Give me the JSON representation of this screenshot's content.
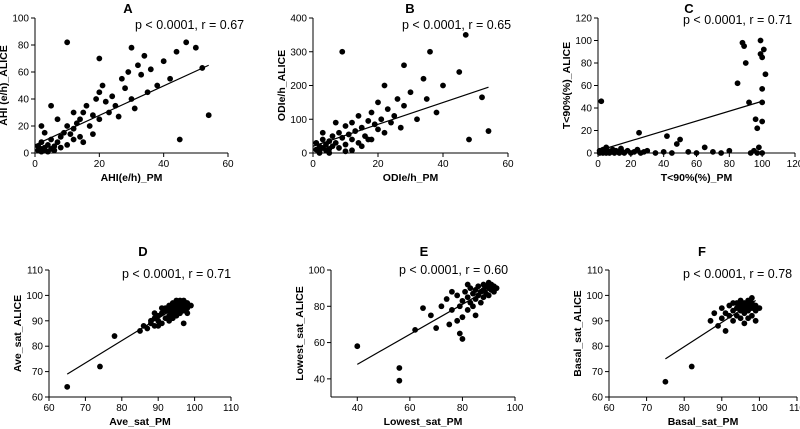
{
  "chart_data": [
    {
      "type": "scatter",
      "letter": "A",
      "stat": "p < 0.0001, r = 0.67",
      "xlabel": "AHI(e/h)_PM",
      "ylabel": "AHI (e/h)_ALICE",
      "xlim": [
        0,
        60
      ],
      "ylim": [
        0,
        100
      ],
      "xticks": [
        0,
        20,
        40,
        60
      ],
      "yticks": [
        0,
        20,
        40,
        60,
        80,
        100
      ],
      "fit": [
        [
          0,
          6
        ],
        [
          54,
          65
        ]
      ],
      "points": [
        [
          1,
          2
        ],
        [
          1,
          5
        ],
        [
          2,
          1
        ],
        [
          2,
          3
        ],
        [
          2,
          8
        ],
        [
          3,
          4
        ],
        [
          3,
          2
        ],
        [
          4,
          6
        ],
        [
          4,
          1
        ],
        [
          5,
          3
        ],
        [
          5,
          10
        ],
        [
          6,
          5
        ],
        [
          6,
          2
        ],
        [
          7,
          8
        ],
        [
          8,
          12
        ],
        [
          8,
          4
        ],
        [
          9,
          15
        ],
        [
          10,
          20
        ],
        [
          10,
          6
        ],
        [
          11,
          14
        ],
        [
          12,
          18
        ],
        [
          12,
          10
        ],
        [
          13,
          22
        ],
        [
          14,
          25
        ],
        [
          14,
          12
        ],
        [
          15,
          30
        ],
        [
          15,
          8
        ],
        [
          16,
          35
        ],
        [
          17,
          20
        ],
        [
          18,
          28
        ],
        [
          18,
          14
        ],
        [
          19,
          40
        ],
        [
          20,
          45
        ],
        [
          20,
          25
        ],
        [
          21,
          50
        ],
        [
          22,
          38
        ],
        [
          23,
          30
        ],
        [
          24,
          42
        ],
        [
          25,
          35
        ],
        [
          26,
          27
        ],
        [
          27,
          55
        ],
        [
          28,
          48
        ],
        [
          29,
          60
        ],
        [
          30,
          40
        ],
        [
          31,
          33
        ],
        [
          32,
          65
        ],
        [
          33,
          58
        ],
        [
          34,
          72
        ],
        [
          35,
          45
        ],
        [
          36,
          62
        ],
        [
          38,
          50
        ],
        [
          40,
          68
        ],
        [
          42,
          55
        ],
        [
          44,
          75
        ],
        [
          45,
          10
        ],
        [
          47,
          82
        ],
        [
          50,
          78
        ],
        [
          52,
          63
        ],
        [
          54,
          28
        ],
        [
          5,
          35
        ],
        [
          2,
          20
        ],
        [
          3,
          15
        ],
        [
          10,
          82
        ],
        [
          20,
          70
        ],
        [
          30,
          78
        ],
        [
          7,
          25
        ],
        [
          12,
          30
        ]
      ]
    },
    {
      "type": "scatter",
      "letter": "B",
      "stat": "p < 0.0001, r = 0.65",
      "xlabel": "ODIe/h_PM",
      "ylabel": "ODIe/h_ALICE",
      "xlim": [
        0,
        60
      ],
      "ylim": [
        0,
        400
      ],
      "xticks": [
        0,
        20,
        40,
        60
      ],
      "yticks": [
        0,
        100,
        200,
        300,
        400
      ],
      "fit": [
        [
          0,
          20
        ],
        [
          54,
          195
        ]
      ],
      "points": [
        [
          1,
          10
        ],
        [
          1,
          30
        ],
        [
          2,
          5
        ],
        [
          2,
          20
        ],
        [
          3,
          40
        ],
        [
          3,
          15
        ],
        [
          4,
          25
        ],
        [
          4,
          8
        ],
        [
          5,
          35
        ],
        [
          5,
          12
        ],
        [
          6,
          50
        ],
        [
          6,
          20
        ],
        [
          7,
          30
        ],
        [
          8,
          60
        ],
        [
          8,
          15
        ],
        [
          9,
          45
        ],
        [
          10,
          80
        ],
        [
          10,
          25
        ],
        [
          11,
          55
        ],
        [
          12,
          40
        ],
        [
          12,
          90
        ],
        [
          13,
          65
        ],
        [
          14,
          30
        ],
        [
          14,
          110
        ],
        [
          15,
          75
        ],
        [
          16,
          50
        ],
        [
          17,
          95
        ],
        [
          18,
          120
        ],
        [
          18,
          40
        ],
        [
          19,
          85
        ],
        [
          20,
          70
        ],
        [
          20,
          150
        ],
        [
          21,
          100
        ],
        [
          22,
          60
        ],
        [
          23,
          130
        ],
        [
          24,
          90
        ],
        [
          25,
          110
        ],
        [
          26,
          160
        ],
        [
          27,
          75
        ],
        [
          28,
          140
        ],
        [
          30,
          180
        ],
        [
          32,
          100
        ],
        [
          34,
          220
        ],
        [
          35,
          160
        ],
        [
          36,
          300
        ],
        [
          38,
          120
        ],
        [
          40,
          200
        ],
        [
          45,
          240
        ],
        [
          47,
          350
        ],
        [
          48,
          40
        ],
        [
          52,
          165
        ],
        [
          54,
          65
        ],
        [
          9,
          300
        ],
        [
          22,
          200
        ],
        [
          28,
          260
        ],
        [
          3,
          60
        ],
        [
          7,
          90
        ],
        [
          15,
          20
        ],
        [
          17,
          40
        ],
        [
          2,
          0
        ],
        [
          5,
          0
        ],
        [
          10,
          5
        ],
        [
          12,
          8
        ]
      ]
    },
    {
      "type": "scatter",
      "letter": "C",
      "stat": "p < 0.0001, r = 0.71",
      "xlabel": "T<90%(%)_PM",
      "ylabel": "T<90%(%)_ALICE",
      "xlim": [
        0,
        120
      ],
      "ylim": [
        0,
        120
      ],
      "xticks": [
        0,
        20,
        40,
        60,
        80,
        100,
        120
      ],
      "yticks": [
        0,
        20,
        40,
        60,
        80,
        100,
        120
      ],
      "fit": [
        [
          0,
          2
        ],
        [
          100,
          46
        ]
      ],
      "points": [
        [
          1,
          0
        ],
        [
          1,
          2
        ],
        [
          2,
          1
        ],
        [
          2,
          46
        ],
        [
          3,
          0
        ],
        [
          3,
          3
        ],
        [
          4,
          1
        ],
        [
          5,
          0
        ],
        [
          5,
          5
        ],
        [
          6,
          2
        ],
        [
          7,
          0
        ],
        [
          8,
          1
        ],
        [
          9,
          3
        ],
        [
          10,
          0
        ],
        [
          11,
          2
        ],
        [
          12,
          1
        ],
        [
          13,
          0
        ],
        [
          14,
          4
        ],
        [
          15,
          1
        ],
        [
          16,
          0
        ],
        [
          18,
          2
        ],
        [
          20,
          0
        ],
        [
          22,
          1
        ],
        [
          24,
          3
        ],
        [
          25,
          18
        ],
        [
          26,
          0
        ],
        [
          28,
          1
        ],
        [
          30,
          2
        ],
        [
          35,
          0
        ],
        [
          40,
          1
        ],
        [
          42,
          15
        ],
        [
          45,
          0
        ],
        [
          48,
          8
        ],
        [
          50,
          12
        ],
        [
          55,
          1
        ],
        [
          60,
          0
        ],
        [
          65,
          5
        ],
        [
          70,
          1
        ],
        [
          75,
          0
        ],
        [
          80,
          2
        ],
        [
          85,
          62
        ],
        [
          88,
          98
        ],
        [
          89,
          95
        ],
        [
          90,
          80
        ],
        [
          92,
          45
        ],
        [
          93,
          0
        ],
        [
          96,
          30
        ],
        [
          97,
          22
        ],
        [
          98,
          5
        ],
        [
          99,
          100
        ],
        [
          99,
          88
        ],
        [
          100,
          85
        ],
        [
          100,
          57
        ],
        [
          100,
          45
        ],
        [
          100,
          28
        ],
        [
          100,
          0
        ],
        [
          101,
          92
        ],
        [
          102,
          70
        ],
        [
          95,
          2
        ],
        [
          97,
          0
        ]
      ]
    },
    {
      "type": "scatter",
      "letter": "D",
      "stat": "p < 0.0001, r = 0.71",
      "xlabel": "Ave_sat_PM",
      "ylabel": "Ave_sat_ALICE",
      "xlim": [
        60,
        110
      ],
      "ylim": [
        60,
        110
      ],
      "xticks": [
        60,
        70,
        80,
        90,
        100,
        110
      ],
      "yticks": [
        60,
        70,
        80,
        90,
        100,
        110
      ],
      "fit": [
        [
          65,
          69
        ],
        [
          98,
          98
        ]
      ],
      "points": [
        [
          65,
          64
        ],
        [
          74,
          72
        ],
        [
          78,
          84
        ],
        [
          85,
          86
        ],
        [
          86,
          88
        ],
        [
          87,
          87
        ],
        [
          88,
          90
        ],
        [
          88,
          89
        ],
        [
          89,
          91
        ],
        [
          89,
          88
        ],
        [
          90,
          92
        ],
        [
          90,
          90
        ],
        [
          91,
          93
        ],
        [
          91,
          89
        ],
        [
          92,
          94
        ],
        [
          92,
          91
        ],
        [
          92,
          95
        ],
        [
          93,
          92
        ],
        [
          93,
          96
        ],
        [
          93,
          94
        ],
        [
          94,
          95
        ],
        [
          94,
          93
        ],
        [
          94,
          97
        ],
        [
          95,
          96
        ],
        [
          95,
          94
        ],
        [
          95,
          92
        ],
        [
          96,
          97
        ],
        [
          96,
          95
        ],
        [
          96,
          98
        ],
        [
          97,
          96
        ],
        [
          97,
          94
        ],
        [
          97,
          98
        ],
        [
          98,
          97
        ],
        [
          98,
          95
        ],
        [
          98,
          93
        ],
        [
          99,
          96
        ],
        [
          90,
          88
        ],
        [
          89,
          93
        ],
        [
          91,
          95
        ],
        [
          93,
          90
        ],
        [
          95,
          98
        ],
        [
          96,
          93
        ],
        [
          97,
          89
        ],
        [
          94,
          91
        ]
      ]
    },
    {
      "type": "scatter",
      "letter": "E",
      "stat": "p < 0.0001, r = 0.60",
      "xlabel": "Lowest_sat_PM",
      "ylabel": "Lowest_sat_ALICE",
      "xlim": [
        30,
        100
      ],
      "ylim": [
        30,
        100
      ],
      "xticks": [
        40,
        60,
        80,
        100
      ],
      "yticks": [
        40,
        60,
        80,
        100
      ],
      "fit": [
        [
          40,
          48
        ],
        [
          92,
          91
        ]
      ],
      "points": [
        [
          40,
          58
        ],
        [
          56,
          46
        ],
        [
          56,
          39
        ],
        [
          62,
          67
        ],
        [
          65,
          79
        ],
        [
          68,
          75
        ],
        [
          70,
          68
        ],
        [
          72,
          80
        ],
        [
          74,
          84
        ],
        [
          75,
          70
        ],
        [
          76,
          78
        ],
        [
          78,
          86
        ],
        [
          78,
          72
        ],
        [
          79,
          80
        ],
        [
          80,
          83
        ],
        [
          80,
          62
        ],
        [
          81,
          88
        ],
        [
          82,
          85
        ],
        [
          82,
          78
        ],
        [
          83,
          90
        ],
        [
          83,
          82
        ],
        [
          84,
          87
        ],
        [
          84,
          80
        ],
        [
          85,
          89
        ],
        [
          85,
          84
        ],
        [
          85,
          75
        ],
        [
          86,
          91
        ],
        [
          86,
          86
        ],
        [
          87,
          88
        ],
        [
          87,
          82
        ],
        [
          88,
          92
        ],
        [
          88,
          89
        ],
        [
          88,
          85
        ],
        [
          89,
          91
        ],
        [
          89,
          87
        ],
        [
          90,
          93
        ],
        [
          90,
          90
        ],
        [
          90,
          86
        ],
        [
          91,
          89
        ],
        [
          91,
          92
        ],
        [
          92,
          88
        ],
        [
          92,
          91
        ],
        [
          93,
          90
        ],
        [
          76,
          88
        ],
        [
          80,
          74
        ],
        [
          82,
          92
        ],
        [
          79,
          65
        ]
      ]
    },
    {
      "type": "scatter",
      "letter": "F",
      "stat": "p < 0.0001, r = 0.78",
      "xlabel": "Basal_sat_PM",
      "ylabel": "Basal_sat_ALICE",
      "xlim": [
        60,
        110
      ],
      "ylim": [
        60,
        110
      ],
      "xticks": [
        60,
        70,
        80,
        90,
        100,
        110
      ],
      "yticks": [
        60,
        70,
        80,
        90,
        100,
        110
      ],
      "fit": [
        [
          75,
          75
        ],
        [
          99,
          98
        ]
      ],
      "points": [
        [
          75,
          66
        ],
        [
          82,
          72
        ],
        [
          87,
          90
        ],
        [
          88,
          93
        ],
        [
          89,
          88
        ],
        [
          90,
          91
        ],
        [
          90,
          95
        ],
        [
          91,
          93
        ],
        [
          91,
          86
        ],
        [
          92,
          96
        ],
        [
          92,
          92
        ],
        [
          93,
          94
        ],
        [
          93,
          90
        ],
        [
          94,
          97
        ],
        [
          94,
          95
        ],
        [
          94,
          92
        ],
        [
          95,
          96
        ],
        [
          95,
          94
        ],
        [
          95,
          91
        ],
        [
          96,
          97
        ],
        [
          96,
          95
        ],
        [
          96,
          93
        ],
        [
          97,
          98
        ],
        [
          97,
          96
        ],
        [
          97,
          94
        ],
        [
          97,
          91
        ],
        [
          98,
          97
        ],
        [
          98,
          95
        ],
        [
          98,
          92
        ],
        [
          99,
          96
        ],
        [
          99,
          94
        ],
        [
          99,
          90
        ],
        [
          100,
          95
        ],
        [
          93,
          97
        ],
        [
          95,
          98
        ],
        [
          96,
          89
        ],
        [
          98,
          99
        ]
      ]
    }
  ]
}
